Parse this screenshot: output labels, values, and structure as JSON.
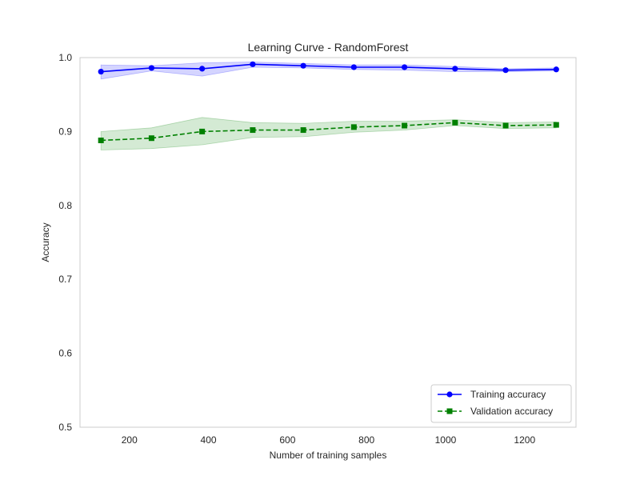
{
  "chart_data": {
    "type": "line",
    "title": "Learning Curve - RandomForest",
    "xlabel": "Number of training samples",
    "ylabel": "Accuracy",
    "xlim": [
      75,
      1330
    ],
    "ylim": [
      0.5,
      1.0
    ],
    "x_ticks": [
      200,
      400,
      600,
      800,
      1000,
      1200
    ],
    "x_tick_labels": [
      "200",
      "400",
      "600",
      "800",
      "1000",
      "1200"
    ],
    "y_ticks": [
      0.5,
      0.6,
      0.7,
      0.8,
      0.9,
      1.0
    ],
    "y_tick_labels": [
      "0.5",
      "0.6",
      "0.7",
      "0.8",
      "0.9",
      "1.0"
    ],
    "grid": false,
    "legend_position": "lower-right",
    "x": [
      128,
      256,
      384,
      512,
      640,
      768,
      896,
      1024,
      1152,
      1280
    ],
    "series": [
      {
        "name": "Training accuracy",
        "color": "#0000ff",
        "line_style": "solid",
        "marker": "circle",
        "values": [
          0.981,
          0.986,
          0.985,
          0.991,
          0.989,
          0.987,
          0.987,
          0.985,
          0.983,
          0.984
        ],
        "band_lower": [
          0.971,
          0.982,
          0.975,
          0.987,
          0.986,
          0.984,
          0.983,
          0.981,
          0.981,
          0.982
        ],
        "band_upper": [
          0.99,
          0.989,
          0.993,
          0.994,
          0.992,
          0.99,
          0.99,
          0.988,
          0.985,
          0.986
        ]
      },
      {
        "name": "Validation accuracy",
        "color": "#008000",
        "line_style": "dashed",
        "marker": "square",
        "values": [
          0.888,
          0.891,
          0.9,
          0.902,
          0.902,
          0.906,
          0.908,
          0.912,
          0.908,
          0.909
        ],
        "band_lower": [
          0.875,
          0.877,
          0.882,
          0.892,
          0.893,
          0.899,
          0.902,
          0.908,
          0.904,
          0.905
        ],
        "band_upper": [
          0.9,
          0.905,
          0.919,
          0.912,
          0.911,
          0.914,
          0.914,
          0.916,
          0.912,
          0.913
        ]
      }
    ]
  }
}
